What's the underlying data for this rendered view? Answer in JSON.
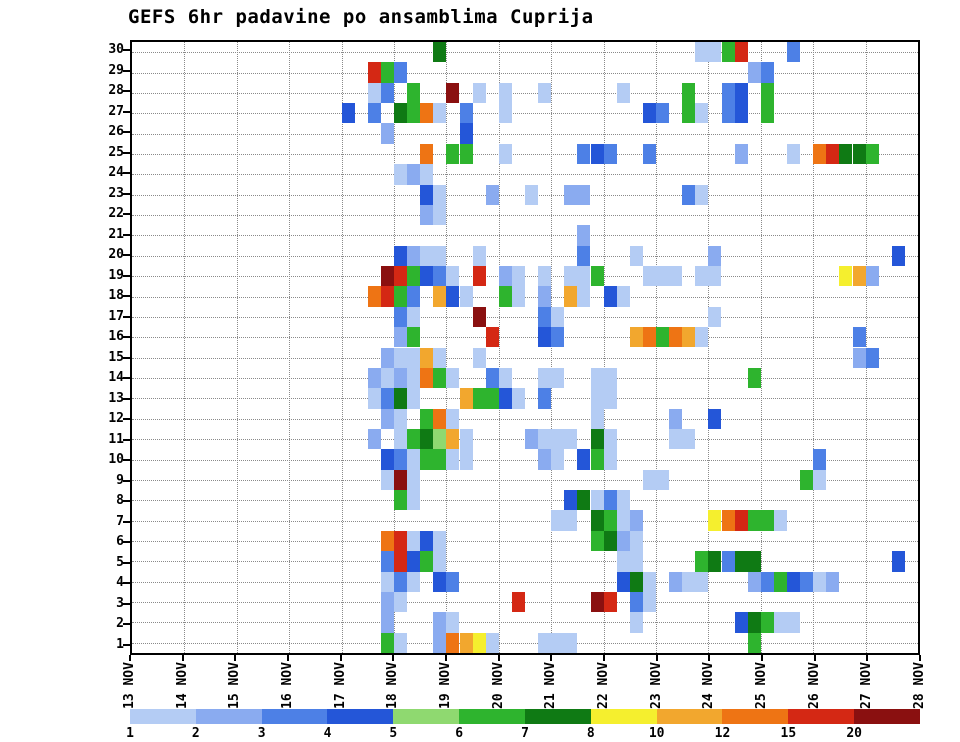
{
  "title": "GEFS 6hr padavine po ansamblima Cuprija",
  "chart_data": {
    "type": "heatmap",
    "title": "GEFS 6hr padavine po ansamblima Cuprija",
    "x_labels": [
      "13 NOV",
      "14 NOV",
      "15 NOV",
      "16 NOV",
      "17 NOV",
      "18 NOV",
      "19 NOV",
      "20 NOV",
      "21 NOV",
      "22 NOV",
      "23 NOV",
      "24 NOV",
      "25 NOV",
      "26 NOV",
      "27 NOV",
      "28 NOV"
    ],
    "cols_per_day": 4,
    "n_cols": 60,
    "y_labels": [
      "30",
      "29",
      "28",
      "27",
      "26",
      "25",
      "24",
      "23",
      "22",
      "21",
      "20",
      "19",
      "18",
      "17",
      "16",
      "15",
      "14",
      "13",
      "12",
      "11",
      "10",
      "9",
      "8",
      "7",
      "6",
      "5",
      "4",
      "3",
      "2",
      "1"
    ],
    "grid": true,
    "legend": {
      "labels": [
        "1",
        "2",
        "3",
        "4",
        "5",
        "6",
        "7",
        "8",
        "10",
        "12",
        "15",
        "20"
      ],
      "values": [
        1,
        2,
        3,
        4,
        5,
        6,
        7,
        8,
        10,
        12,
        15,
        20
      ],
      "colors": [
        "#b4ccf4",
        "#8aabf0",
        "#4d80e6",
        "#2456d8",
        "#8fd970",
        "#2eb42e",
        "#0f7a14",
        "#f5ef2e",
        "#f2a72e",
        "#ee7414",
        "#d42814",
        "#8a1010"
      ]
    },
    "cells": [
      [
        30,
        23,
        6
      ],
      [
        30,
        43,
        0
      ],
      [
        30,
        44,
        0
      ],
      [
        30,
        45,
        5
      ],
      [
        30,
        46,
        10
      ],
      [
        30,
        50,
        2
      ],
      [
        29,
        18,
        10
      ],
      [
        29,
        19,
        5
      ],
      [
        29,
        20,
        2
      ],
      [
        29,
        47,
        1
      ],
      [
        29,
        48,
        2
      ],
      [
        28,
        18,
        0
      ],
      [
        28,
        19,
        2
      ],
      [
        28,
        21,
        5
      ],
      [
        28,
        24,
        11
      ],
      [
        28,
        26,
        0
      ],
      [
        28,
        28,
        0
      ],
      [
        28,
        31,
        0
      ],
      [
        28,
        37,
        0
      ],
      [
        28,
        42,
        5
      ],
      [
        28,
        45,
        2
      ],
      [
        28,
        46,
        3
      ],
      [
        28,
        48,
        5
      ],
      [
        27,
        16,
        3
      ],
      [
        27,
        18,
        2
      ],
      [
        27,
        20,
        6
      ],
      [
        27,
        21,
        5
      ],
      [
        27,
        22,
        9
      ],
      [
        27,
        23,
        0
      ],
      [
        27,
        25,
        2
      ],
      [
        27,
        28,
        0
      ],
      [
        27,
        39,
        3
      ],
      [
        27,
        40,
        2
      ],
      [
        27,
        42,
        5
      ],
      [
        27,
        43,
        0
      ],
      [
        27,
        45,
        2
      ],
      [
        27,
        46,
        3
      ],
      [
        27,
        48,
        5
      ],
      [
        26,
        19,
        1
      ],
      [
        26,
        25,
        3
      ],
      [
        25,
        22,
        9
      ],
      [
        25,
        24,
        5
      ],
      [
        25,
        25,
        5
      ],
      [
        25,
        28,
        0
      ],
      [
        25,
        34,
        2
      ],
      [
        25,
        35,
        3
      ],
      [
        25,
        36,
        2
      ],
      [
        25,
        39,
        2
      ],
      [
        25,
        46,
        1
      ],
      [
        25,
        50,
        0
      ],
      [
        25,
        52,
        9
      ],
      [
        25,
        53,
        10
      ],
      [
        25,
        54,
        6
      ],
      [
        25,
        55,
        6
      ],
      [
        25,
        56,
        5
      ],
      [
        24,
        20,
        0
      ],
      [
        24,
        21,
        1
      ],
      [
        24,
        22,
        0
      ],
      [
        23,
        22,
        3
      ],
      [
        23,
        23,
        0
      ],
      [
        23,
        27,
        1
      ],
      [
        23,
        30,
        0
      ],
      [
        23,
        33,
        1
      ],
      [
        23,
        34,
        1
      ],
      [
        23,
        42,
        2
      ],
      [
        23,
        43,
        0
      ],
      [
        22,
        22,
        1
      ],
      [
        22,
        23,
        0
      ],
      [
        21,
        34,
        1
      ],
      [
        20,
        20,
        3
      ],
      [
        20,
        21,
        1
      ],
      [
        20,
        22,
        0
      ],
      [
        20,
        23,
        0
      ],
      [
        20,
        26,
        0
      ],
      [
        20,
        34,
        2
      ],
      [
        20,
        38,
        0
      ],
      [
        20,
        44,
        1
      ],
      [
        20,
        58,
        3
      ],
      [
        19,
        19,
        11
      ],
      [
        19,
        20,
        10
      ],
      [
        19,
        21,
        5
      ],
      [
        19,
        22,
        3
      ],
      [
        19,
        23,
        2
      ],
      [
        19,
        24,
        0
      ],
      [
        19,
        26,
        10
      ],
      [
        19,
        28,
        1
      ],
      [
        19,
        29,
        0
      ],
      [
        19,
        31,
        0
      ],
      [
        19,
        33,
        0
      ],
      [
        19,
        34,
        0
      ],
      [
        19,
        35,
        5
      ],
      [
        19,
        39,
        0
      ],
      [
        19,
        40,
        0
      ],
      [
        19,
        41,
        0
      ],
      [
        19,
        43,
        0
      ],
      [
        19,
        44,
        0
      ],
      [
        19,
        54,
        7
      ],
      [
        19,
        55,
        8
      ],
      [
        19,
        56,
        1
      ],
      [
        18,
        18,
        9
      ],
      [
        18,
        19,
        10
      ],
      [
        18,
        20,
        5
      ],
      [
        18,
        21,
        2
      ],
      [
        18,
        23,
        8
      ],
      [
        18,
        24,
        3
      ],
      [
        18,
        25,
        0
      ],
      [
        18,
        28,
        5
      ],
      [
        18,
        29,
        0
      ],
      [
        18,
        31,
        1
      ],
      [
        18,
        33,
        8
      ],
      [
        18,
        34,
        0
      ],
      [
        18,
        36,
        3
      ],
      [
        18,
        37,
        0
      ],
      [
        17,
        20,
        2
      ],
      [
        17,
        21,
        0
      ],
      [
        17,
        26,
        11
      ],
      [
        17,
        31,
        2
      ],
      [
        17,
        32,
        0
      ],
      [
        17,
        44,
        0
      ],
      [
        16,
        20,
        1
      ],
      [
        16,
        21,
        5
      ],
      [
        16,
        27,
        10
      ],
      [
        16,
        31,
        3
      ],
      [
        16,
        32,
        2
      ],
      [
        16,
        38,
        8
      ],
      [
        16,
        39,
        9
      ],
      [
        16,
        40,
        5
      ],
      [
        16,
        41,
        9
      ],
      [
        16,
        42,
        8
      ],
      [
        16,
        43,
        0
      ],
      [
        16,
        55,
        2
      ],
      [
        15,
        19,
        1
      ],
      [
        15,
        20,
        0
      ],
      [
        15,
        21,
        0
      ],
      [
        15,
        22,
        8
      ],
      [
        15,
        23,
        0
      ],
      [
        15,
        26,
        0
      ],
      [
        15,
        55,
        1
      ],
      [
        15,
        56,
        2
      ],
      [
        14,
        18,
        1
      ],
      [
        14,
        19,
        0
      ],
      [
        14,
        20,
        1
      ],
      [
        14,
        21,
        0
      ],
      [
        14,
        22,
        9
      ],
      [
        14,
        23,
        5
      ],
      [
        14,
        24,
        0
      ],
      [
        14,
        27,
        2
      ],
      [
        14,
        28,
        0
      ],
      [
        14,
        31,
        0
      ],
      [
        14,
        32,
        0
      ],
      [
        14,
        35,
        0
      ],
      [
        14,
        36,
        0
      ],
      [
        14,
        47,
        5
      ],
      [
        13,
        18,
        0
      ],
      [
        13,
        19,
        2
      ],
      [
        13,
        20,
        6
      ],
      [
        13,
        21,
        0
      ],
      [
        13,
        25,
        8
      ],
      [
        13,
        26,
        5
      ],
      [
        13,
        27,
        5
      ],
      [
        13,
        28,
        3
      ],
      [
        13,
        29,
        0
      ],
      [
        13,
        31,
        2
      ],
      [
        13,
        35,
        0
      ],
      [
        13,
        36,
        0
      ],
      [
        12,
        19,
        1
      ],
      [
        12,
        20,
        0
      ],
      [
        12,
        22,
        5
      ],
      [
        12,
        23,
        9
      ],
      [
        12,
        24,
        0
      ],
      [
        12,
        35,
        0
      ],
      [
        12,
        41,
        1
      ],
      [
        12,
        44,
        3
      ],
      [
        11,
        18,
        1
      ],
      [
        11,
        20,
        0
      ],
      [
        11,
        21,
        5
      ],
      [
        11,
        22,
        6
      ],
      [
        11,
        23,
        4
      ],
      [
        11,
        24,
        8
      ],
      [
        11,
        25,
        0
      ],
      [
        11,
        30,
        1
      ],
      [
        11,
        31,
        0
      ],
      [
        11,
        32,
        0
      ],
      [
        11,
        33,
        0
      ],
      [
        11,
        35,
        6
      ],
      [
        11,
        36,
        0
      ],
      [
        11,
        41,
        0
      ],
      [
        11,
        42,
        0
      ],
      [
        10,
        19,
        3
      ],
      [
        10,
        20,
        2
      ],
      [
        10,
        21,
        0
      ],
      [
        10,
        22,
        5
      ],
      [
        10,
        23,
        5
      ],
      [
        10,
        24,
        0
      ],
      [
        10,
        25,
        0
      ],
      [
        10,
        31,
        1
      ],
      [
        10,
        32,
        0
      ],
      [
        10,
        34,
        3
      ],
      [
        10,
        35,
        5
      ],
      [
        10,
        36,
        0
      ],
      [
        10,
        52,
        2
      ],
      [
        9,
        19,
        0
      ],
      [
        9,
        20,
        11
      ],
      [
        9,
        21,
        0
      ],
      [
        9,
        39,
        0
      ],
      [
        9,
        40,
        0
      ],
      [
        9,
        51,
        5
      ],
      [
        9,
        52,
        0
      ],
      [
        8,
        20,
        5
      ],
      [
        8,
        21,
        0
      ],
      [
        8,
        33,
        3
      ],
      [
        8,
        34,
        6
      ],
      [
        8,
        35,
        0
      ],
      [
        8,
        36,
        2
      ],
      [
        8,
        37,
        0
      ],
      [
        7,
        32,
        0
      ],
      [
        7,
        33,
        0
      ],
      [
        7,
        35,
        6
      ],
      [
        7,
        36,
        5
      ],
      [
        7,
        37,
        0
      ],
      [
        7,
        38,
        1
      ],
      [
        7,
        44,
        7
      ],
      [
        7,
        45,
        9
      ],
      [
        7,
        46,
        10
      ],
      [
        7,
        47,
        5
      ],
      [
        7,
        48,
        5
      ],
      [
        7,
        49,
        0
      ],
      [
        6,
        19,
        9
      ],
      [
        6,
        20,
        10
      ],
      [
        6,
        21,
        0
      ],
      [
        6,
        22,
        3
      ],
      [
        6,
        23,
        0
      ],
      [
        6,
        35,
        5
      ],
      [
        6,
        36,
        6
      ],
      [
        6,
        37,
        1
      ],
      [
        6,
        38,
        0
      ],
      [
        5,
        19,
        2
      ],
      [
        5,
        20,
        10
      ],
      [
        5,
        21,
        3
      ],
      [
        5,
        22,
        5
      ],
      [
        5,
        23,
        0
      ],
      [
        5,
        37,
        0
      ],
      [
        5,
        38,
        0
      ],
      [
        5,
        43,
        5
      ],
      [
        5,
        44,
        6
      ],
      [
        5,
        45,
        2
      ],
      [
        5,
        46,
        6
      ],
      [
        5,
        47,
        6
      ],
      [
        5,
        58,
        3
      ],
      [
        4,
        19,
        0
      ],
      [
        4,
        20,
        2
      ],
      [
        4,
        21,
        0
      ],
      [
        4,
        23,
        3
      ],
      [
        4,
        24,
        2
      ],
      [
        4,
        37,
        3
      ],
      [
        4,
        38,
        6
      ],
      [
        4,
        39,
        0
      ],
      [
        4,
        41,
        1
      ],
      [
        4,
        42,
        0
      ],
      [
        4,
        43,
        0
      ],
      [
        4,
        47,
        1
      ],
      [
        4,
        48,
        2
      ],
      [
        4,
        49,
        5
      ],
      [
        4,
        50,
        3
      ],
      [
        4,
        51,
        2
      ],
      [
        4,
        52,
        0
      ],
      [
        4,
        53,
        1
      ],
      [
        3,
        19,
        1
      ],
      [
        3,
        20,
        0
      ],
      [
        3,
        29,
        10
      ],
      [
        3,
        35,
        11
      ],
      [
        3,
        36,
        10
      ],
      [
        3,
        38,
        2
      ],
      [
        3,
        39,
        0
      ],
      [
        2,
        19,
        1
      ],
      [
        2,
        23,
        1
      ],
      [
        2,
        24,
        0
      ],
      [
        2,
        38,
        0
      ],
      [
        2,
        46,
        3
      ],
      [
        2,
        47,
        6
      ],
      [
        2,
        48,
        5
      ],
      [
        2,
        49,
        0
      ],
      [
        2,
        50,
        0
      ],
      [
        1,
        19,
        5
      ],
      [
        1,
        20,
        0
      ],
      [
        1,
        23,
        1
      ],
      [
        1,
        24,
        9
      ],
      [
        1,
        25,
        8
      ],
      [
        1,
        26,
        7
      ],
      [
        1,
        27,
        0
      ],
      [
        1,
        31,
        0
      ],
      [
        1,
        32,
        0
      ],
      [
        1,
        33,
        0
      ],
      [
        1,
        47,
        5
      ]
    ]
  }
}
